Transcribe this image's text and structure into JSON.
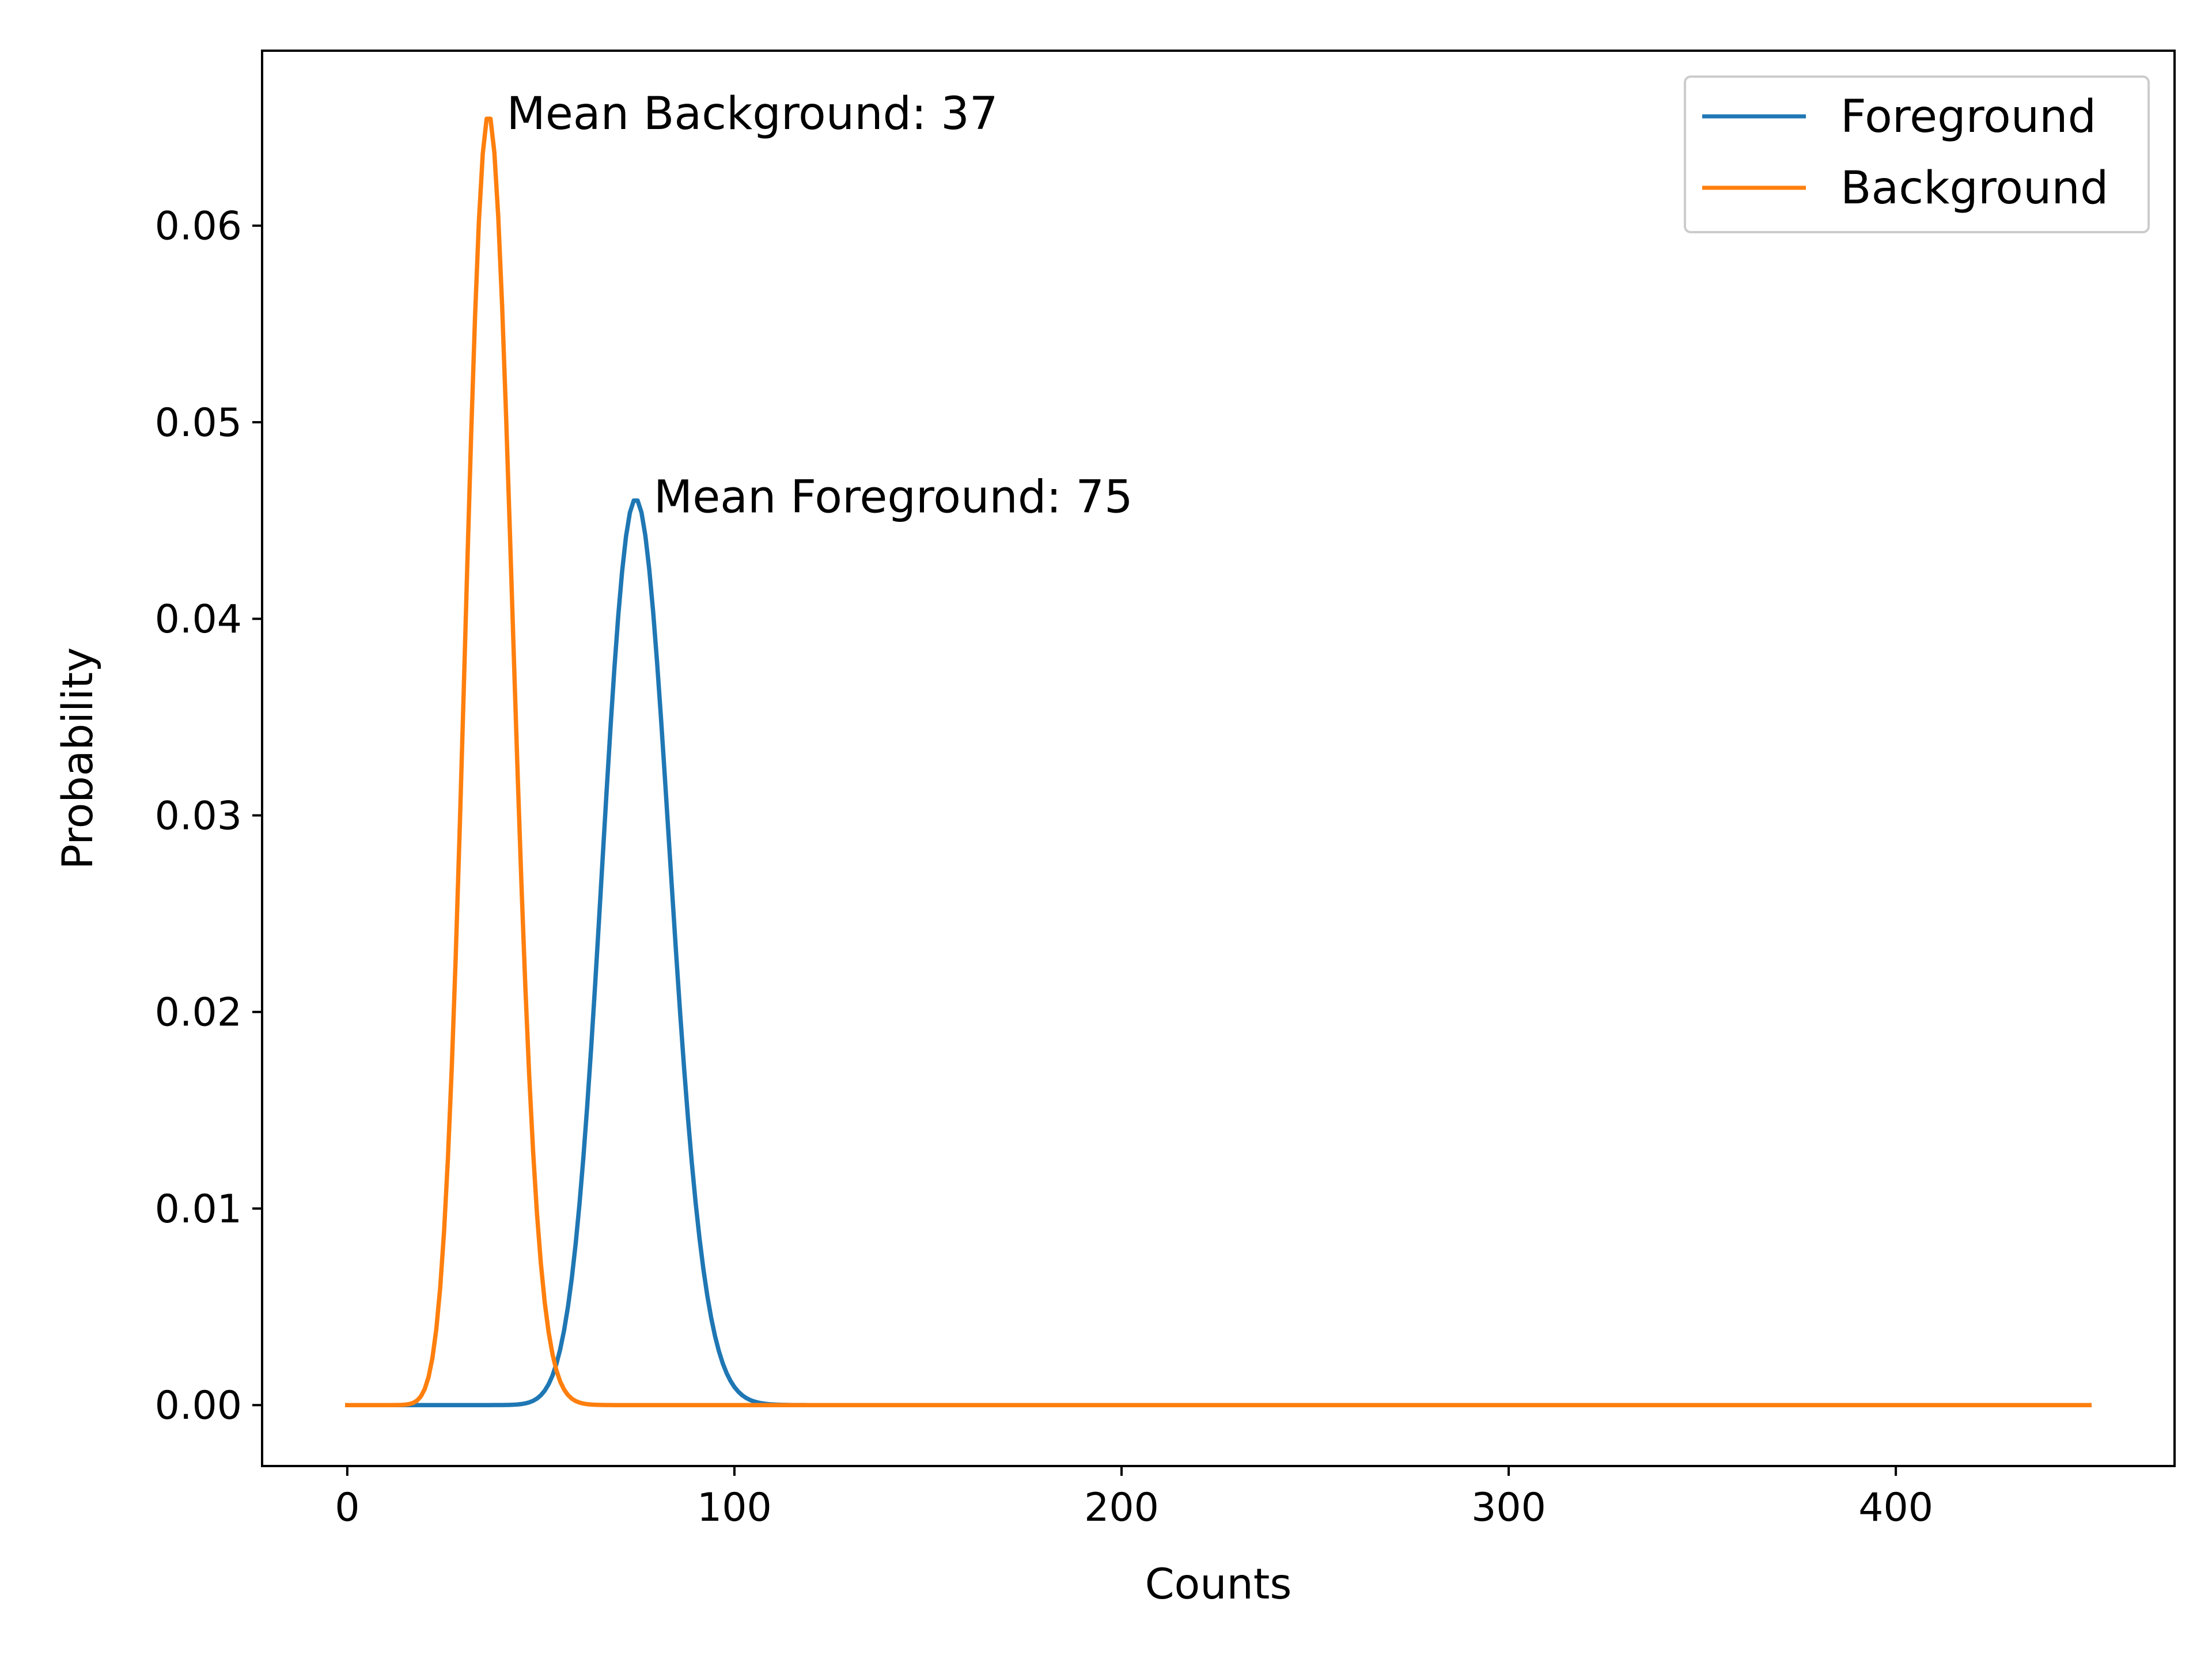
{
  "chart_data": {
    "type": "line",
    "title": "",
    "xlabel": "Counts",
    "ylabel": "Probability",
    "xlim": [
      -22,
      472
    ],
    "ylim": [
      -0.0031,
      0.0689
    ],
    "x_ticks": [
      0,
      100,
      200,
      300,
      400
    ],
    "y_ticks": [
      0.0,
      0.01,
      0.02,
      0.03,
      0.04,
      0.05,
      0.06
    ],
    "x_tick_labels": [
      "0",
      "100",
      "200",
      "300",
      "400"
    ],
    "y_tick_labels": [
      "0.00",
      "0.01",
      "0.02",
      "0.03",
      "0.04",
      "0.05",
      "0.06"
    ],
    "x_range": [
      0,
      450
    ],
    "grid": false,
    "legend_position": "top-right",
    "series": [
      {
        "name": "Foreground",
        "color": "#1f77b4",
        "distribution": "poisson",
        "mean": 75,
        "peak": 0.046
      },
      {
        "name": "Background",
        "color": "#ff7f0e",
        "distribution": "poisson",
        "mean": 37,
        "peak": 0.0655
      }
    ],
    "annotations": [
      {
        "text": "Mean Background: 37",
        "x": 37,
        "y": 0.0655
      },
      {
        "text": "Mean Foreground: 75",
        "x": 75,
        "y": 0.046
      }
    ]
  }
}
